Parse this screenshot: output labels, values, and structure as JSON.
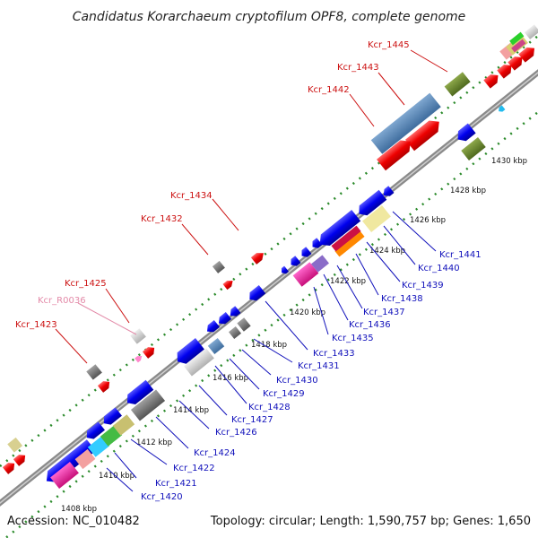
{
  "title": "Candidatus Korarchaeum cryptofilum OPF8, complete genome",
  "footer": {
    "accession": "Accession: NC_010482",
    "stats": "Topology: circular; Length: 1,590,757 bp; Genes: 1,650"
  },
  "colors": {
    "forward_label": "#cc1111",
    "reverse_label": "#1111bb",
    "rna_label": "#e38aa8",
    "backbone": "#9a9a9a",
    "dots": "#2a8a2a"
  },
  "ticks": [
    {
      "label": "1408 kbp"
    },
    {
      "label": "1410 kbp"
    },
    {
      "label": "1412 kbp"
    },
    {
      "label": "1414 kbp"
    },
    {
      "label": "1416 kbp"
    },
    {
      "label": "1418 kbp"
    },
    {
      "label": "1420 kbp"
    },
    {
      "label": "1422 kbp"
    },
    {
      "label": "1424 kbp"
    },
    {
      "label": "1426 kbp"
    },
    {
      "label": "1428 kbp"
    },
    {
      "label": "1430 kbp"
    }
  ],
  "forward_labels": [
    {
      "id": "Kcr_1423",
      "label": "Kcr_1423"
    },
    {
      "id": "Kcr_R0036",
      "label": "Kcr_R0036"
    },
    {
      "id": "Kcr_1425",
      "label": "Kcr_1425"
    },
    {
      "id": "Kcr_1432",
      "label": "Kcr_1432"
    },
    {
      "id": "Kcr_1434",
      "label": "Kcr_1434"
    },
    {
      "id": "Kcr_1442",
      "label": "Kcr_1442"
    },
    {
      "id": "Kcr_1443",
      "label": "Kcr_1443"
    },
    {
      "id": "Kcr_1445",
      "label": "Kcr_1445"
    }
  ],
  "reverse_labels": [
    {
      "id": "Kcr_1420",
      "label": "Kcr_1420"
    },
    {
      "id": "Kcr_1421",
      "label": "Kcr_1421"
    },
    {
      "id": "Kcr_1422",
      "label": "Kcr_1422"
    },
    {
      "id": "Kcr_1424",
      "label": "Kcr_1424"
    },
    {
      "id": "Kcr_1426",
      "label": "Kcr_1426"
    },
    {
      "id": "Kcr_1427",
      "label": "Kcr_1427"
    },
    {
      "id": "Kcr_1428",
      "label": "Kcr_1428"
    },
    {
      "id": "Kcr_1429",
      "label": "Kcr_1429"
    },
    {
      "id": "Kcr_1430",
      "label": "Kcr_1430"
    },
    {
      "id": "Kcr_1431",
      "label": "Kcr_1431"
    },
    {
      "id": "Kcr_1433",
      "label": "Kcr_1433"
    },
    {
      "id": "Kcr_1435",
      "label": "Kcr_1435"
    },
    {
      "id": "Kcr_1436",
      "label": "Kcr_1436"
    },
    {
      "id": "Kcr_1437",
      "label": "Kcr_1437"
    },
    {
      "id": "Kcr_1438",
      "label": "Kcr_1438"
    },
    {
      "id": "Kcr_1439",
      "label": "Kcr_1439"
    },
    {
      "id": "Kcr_1440",
      "label": "Kcr_1440"
    },
    {
      "id": "Kcr_1441",
      "label": "Kcr_1441"
    }
  ]
}
